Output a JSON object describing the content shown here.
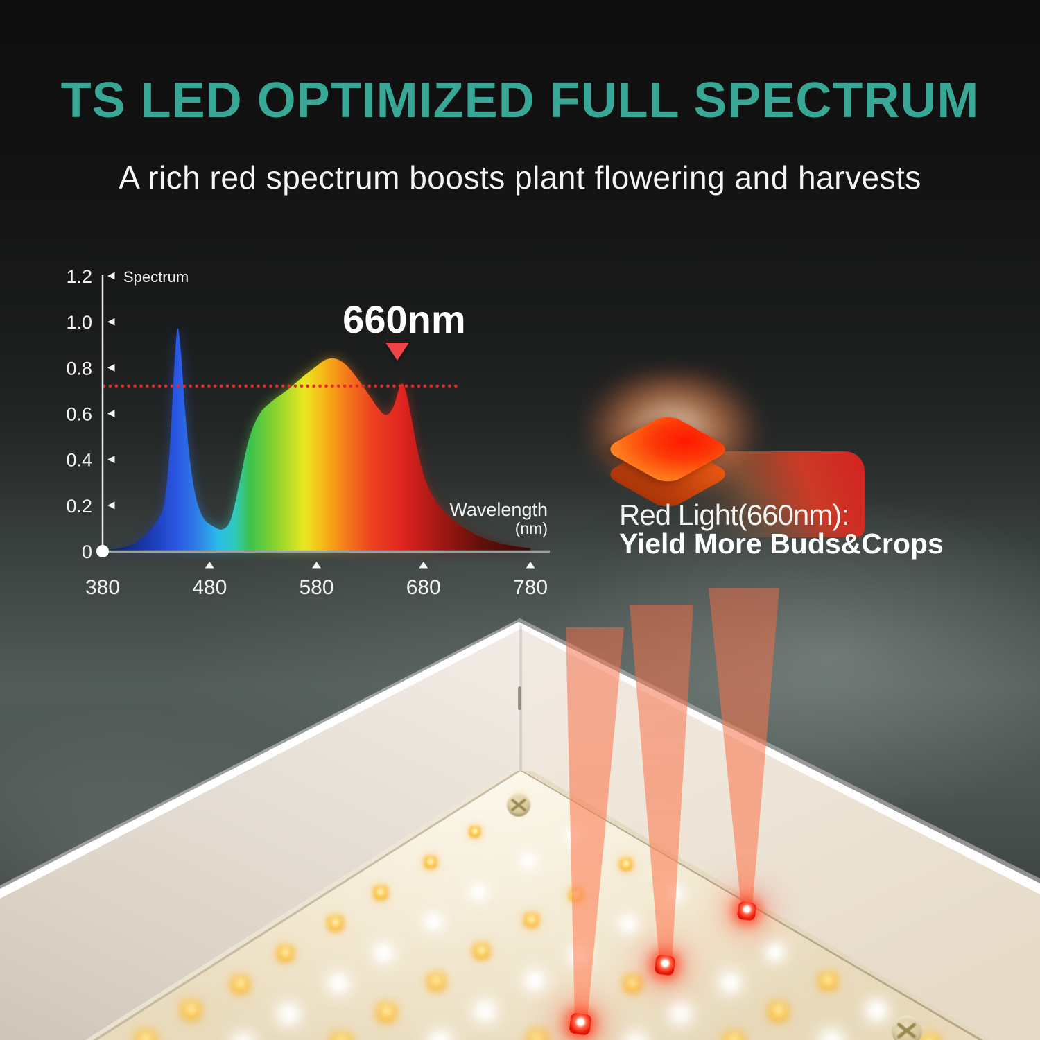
{
  "title": "TS LED OPTIMIZED FULL SPECTRUM",
  "subtitle": "A rich red spectrum boosts plant flowering and harvests",
  "colors": {
    "accent": "#38a796",
    "reference_red": "#e8282d",
    "marker_red": "#ef4447",
    "chip_red": "#ff3c00"
  },
  "chart_data": {
    "type": "area",
    "series_label": "Spectrum",
    "xlabel": "Wavelength",
    "xlabel_unit": "(nm)",
    "x_ticks": [
      "380",
      "480",
      "580",
      "680",
      "780"
    ],
    "y_ticks": [
      "1.2",
      "1.0",
      "0.8",
      "0.6",
      "0.4",
      "0.2",
      "0"
    ],
    "xlim": [
      380,
      780
    ],
    "ylim": [
      0,
      1.2
    ],
    "grid": false,
    "annotation_label": "660nm",
    "annotation_x": 660,
    "reference_line_y": 0.72,
    "curve_nm_value": [
      [
        380,
        0.004
      ],
      [
        398,
        0.015
      ],
      [
        410,
        0.035
      ],
      [
        422,
        0.08
      ],
      [
        432,
        0.14
      ],
      [
        438,
        0.22
      ],
      [
        443,
        0.46
      ],
      [
        447,
        0.8
      ],
      [
        450,
        0.97
      ],
      [
        453,
        0.88
      ],
      [
        457,
        0.62
      ],
      [
        462,
        0.38
      ],
      [
        468,
        0.22
      ],
      [
        475,
        0.14
      ],
      [
        483,
        0.11
      ],
      [
        492,
        0.095
      ],
      [
        500,
        0.14
      ],
      [
        508,
        0.3
      ],
      [
        517,
        0.49
      ],
      [
        527,
        0.6
      ],
      [
        540,
        0.66
      ],
      [
        552,
        0.7
      ],
      [
        565,
        0.752
      ],
      [
        578,
        0.8
      ],
      [
        588,
        0.833
      ],
      [
        597,
        0.84
      ],
      [
        607,
        0.815
      ],
      [
        618,
        0.755
      ],
      [
        630,
        0.675
      ],
      [
        640,
        0.61
      ],
      [
        646,
        0.595
      ],
      [
        652,
        0.63
      ],
      [
        657,
        0.705
      ],
      [
        660,
        0.73
      ],
      [
        663,
        0.705
      ],
      [
        668,
        0.6
      ],
      [
        674,
        0.45
      ],
      [
        681,
        0.32
      ],
      [
        690,
        0.23
      ],
      [
        700,
        0.17
      ],
      [
        712,
        0.12
      ],
      [
        725,
        0.082
      ],
      [
        740,
        0.05
      ],
      [
        758,
        0.028
      ],
      [
        780,
        0.012
      ]
    ],
    "gradient_stops": [
      [
        380,
        "#0c1a52"
      ],
      [
        425,
        "#1b3cb4"
      ],
      [
        450,
        "#2a58e4"
      ],
      [
        468,
        "#2f7de6"
      ],
      [
        488,
        "#29bce8"
      ],
      [
        503,
        "#2fc9c0"
      ],
      [
        518,
        "#3cc34a"
      ],
      [
        543,
        "#8fd32c"
      ],
      [
        568,
        "#e9e822"
      ],
      [
        588,
        "#f6b315"
      ],
      [
        608,
        "#f47a1a"
      ],
      [
        632,
        "#ec4120"
      ],
      [
        660,
        "#e0241f"
      ],
      [
        695,
        "#a21713"
      ],
      [
        735,
        "#5f100b"
      ],
      [
        780,
        "#390a06"
      ]
    ]
  },
  "callout": {
    "line1": "Red Light(660nm):",
    "line2": "Yield More Buds&Crops"
  }
}
